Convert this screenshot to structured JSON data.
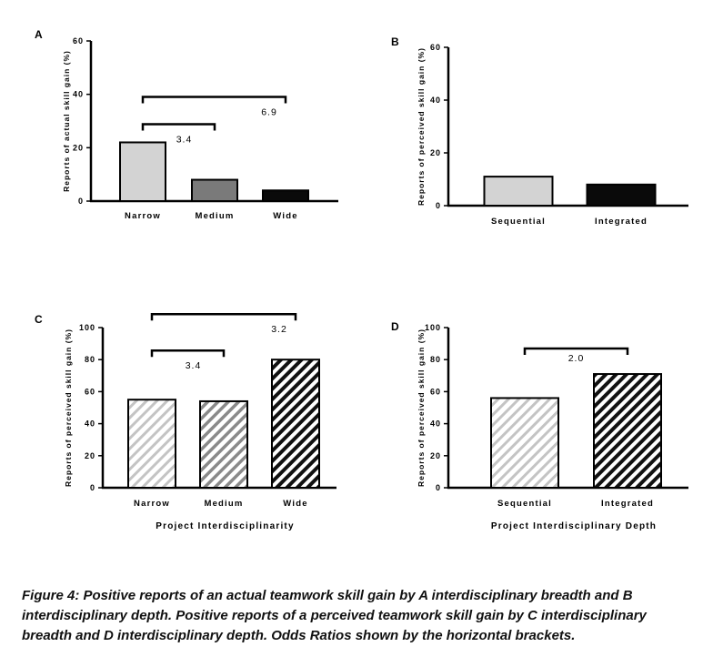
{
  "chart_data": [
    {
      "panel_label": "A",
      "type": "bar",
      "categories": [
        "Narrow",
        "Medium",
        "Wide"
      ],
      "values": [
        22,
        8,
        4
      ],
      "ylabel": "Reports of actual skill gain (%)",
      "xlabel": "",
      "ylim": [
        0,
        60
      ],
      "yticks": [
        0,
        20,
        40,
        60
      ],
      "fills": [
        "light",
        "medium",
        "dark"
      ],
      "brackets": [
        {
          "from": 0,
          "to": 2,
          "level": 2,
          "label": "6.9"
        },
        {
          "from": 0,
          "to": 1,
          "level": 1,
          "label": "3.4"
        }
      ]
    },
    {
      "panel_label": "B",
      "type": "bar",
      "categories": [
        "Sequential",
        "Integrated"
      ],
      "values": [
        11,
        8
      ],
      "ylabel": "Reports of perceived skill gain (%)",
      "xlabel": "",
      "ylim": [
        0,
        60
      ],
      "yticks": [
        0,
        20,
        40,
        60
      ],
      "fills": [
        "light",
        "dark"
      ],
      "brackets": []
    },
    {
      "panel_label": "C",
      "type": "bar",
      "categories": [
        "Narrow",
        "Medium",
        "Wide"
      ],
      "values": [
        55,
        54,
        80
      ],
      "ylabel": "Reports of perceived skill gain (%)",
      "xlabel": "Project Interdisciplinarity",
      "ylim": [
        0,
        100
      ],
      "yticks": [
        0,
        20,
        40,
        60,
        80,
        100
      ],
      "fills": [
        "hatch-light",
        "hatch-medium",
        "hatch-dark"
      ],
      "brackets": [
        {
          "from": 0,
          "to": 2,
          "level": 2,
          "label": "3.2"
        },
        {
          "from": 0,
          "to": 1,
          "level": 1,
          "label": "3.4"
        }
      ]
    },
    {
      "panel_label": "D",
      "type": "bar",
      "categories": [
        "Sequential",
        "Integrated"
      ],
      "values": [
        56,
        71
      ],
      "ylabel": "Reports of perceived skill gain (%)",
      "xlabel": "Project Interdisciplinary Depth",
      "ylim": [
        0,
        100
      ],
      "yticks": [
        0,
        20,
        40,
        60,
        80,
        100
      ],
      "fills": [
        "hatch-light",
        "hatch-dark"
      ],
      "brackets": [
        {
          "from": 0,
          "to": 1,
          "level": 1,
          "label": "2.0"
        }
      ]
    }
  ],
  "colors": {
    "light": "#d3d3d3",
    "medium": "#7a7a7a",
    "dark": "#0a0a0a",
    "hatch_light": "#c4c4c4",
    "hatch_medium": "#8a8a8a",
    "hatch_dark": "#111111",
    "axis": "#000000"
  },
  "caption": "Figure 4: Positive reports of an actual teamwork skill gain by A interdisciplinary breadth and B interdisciplinary depth. Positive reports of a perceived teamwork skill gain by C interdisciplinary breadth and D interdisciplinary depth. Odds Ratios shown by the horizontal brackets."
}
